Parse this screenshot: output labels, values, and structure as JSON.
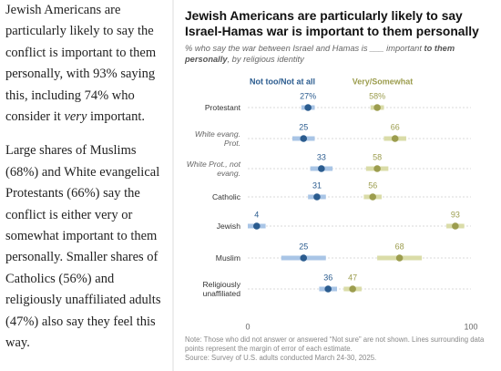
{
  "article": {
    "paragraphs": [
      [
        "Jewish Americans are particularly likely to say the conflict is important to them personally, with 93% saying this, including 74% who consider it ",
        "very",
        " important."
      ],
      [
        "Large shares of Muslims (68%) and White evangelical Protestants (66%) say the conflict is either very or somewhat important to them personally. Smaller shares of Catholics (56%) and religiously unaffiliated adults (47%) also say they feel this way."
      ]
    ]
  },
  "chart_data": {
    "type": "dot",
    "title": "Jewish Americans are particularly likely to say Israel-Hamas war is important to them personally",
    "subtitle": [
      "% who say the war between Israel and Hamas is ___ important ",
      "to them personally",
      ", by religious identity"
    ],
    "categories": [
      "Protestant",
      "White evang. Prot.",
      "White Prot., not evang.",
      "Catholic",
      "Jewish",
      "Muslim",
      "Religiously unaffiliated"
    ],
    "series": [
      {
        "name": "Not too/Not at all",
        "color": "#2b5c8f",
        "error_color": "#a9c5e6",
        "values": [
          27,
          25,
          33,
          31,
          4,
          25,
          36
        ],
        "value_labels": [
          "27%",
          "25",
          "33",
          "31",
          "4",
          "25",
          "36"
        ],
        "errors": [
          3,
          5,
          5,
          4,
          4,
          10,
          4
        ]
      },
      {
        "name": "Very/Somewhat",
        "color": "#9c9d4e",
        "error_color": "#dadca8",
        "values": [
          58,
          66,
          58,
          56,
          93,
          68,
          47
        ],
        "value_labels": [
          "58%",
          "66",
          "58",
          "56",
          "93",
          "68",
          "47"
        ],
        "errors": [
          3,
          5,
          5,
          4,
          4,
          10,
          4
        ]
      }
    ],
    "xlim": [
      0,
      100
    ],
    "xticks": [
      0,
      100
    ],
    "note": "Note: Those who did not answer or answered “Not sure” are not shown. Lines surrounding data points represent the margin of error of each estimate.",
    "source": "Source: Survey of U.S. adults conducted March 24-30, 2025."
  }
}
